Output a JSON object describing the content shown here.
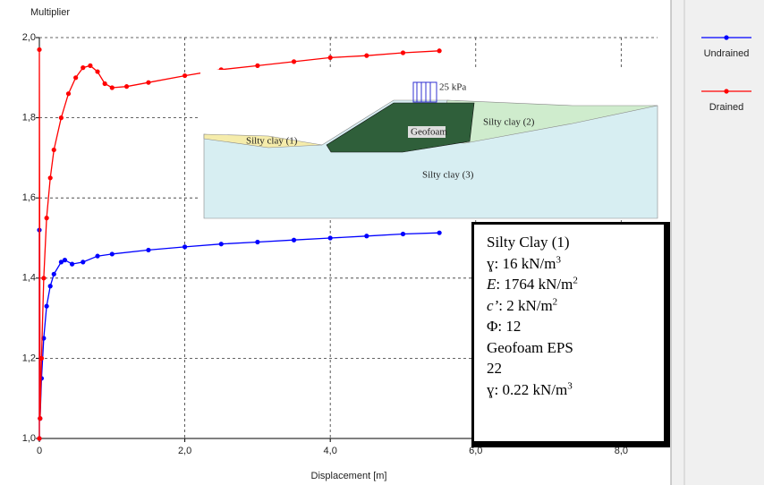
{
  "chart_data": {
    "type": "line",
    "y_label": "Multiplier",
    "x_label": "Displacement [m]",
    "xlim": [
      0,
      8.5
    ],
    "ylim": [
      1.0,
      2.0
    ],
    "xticks": [
      0,
      {
        "value": 2,
        "label": "2,0"
      },
      {
        "value": 4,
        "label": "4,0"
      },
      {
        "value": 6,
        "label": "6,0"
      },
      {
        "value": 8,
        "label": "8,0"
      }
    ],
    "yticks": [
      {
        "value": 1.0,
        "label": "1,0"
      },
      {
        "value": 1.2,
        "label": "1,2"
      },
      {
        "value": 1.4,
        "label": "1,4"
      },
      {
        "value": 1.6,
        "label": "1,6"
      },
      {
        "value": 1.8,
        "label": "1,8"
      },
      {
        "value": 2.0,
        "label": "2,0"
      }
    ],
    "grid": true,
    "legend": "right",
    "series": [
      {
        "name": "Undrained",
        "color": "#0000ff",
        "x": [
          0,
          0,
          0.01,
          0.03,
          0.06,
          0.1,
          0.15,
          0.2,
          0.3,
          0.35,
          0.45,
          0.6,
          0.8,
          1.0,
          1.5,
          2.0,
          2.5,
          3.0,
          3.5,
          4.0,
          4.5,
          5.0,
          5.5
        ],
        "values": [
          1.0,
          1.52,
          1.05,
          1.15,
          1.25,
          1.33,
          1.38,
          1.41,
          1.44,
          1.445,
          1.435,
          1.44,
          1.455,
          1.46,
          1.47,
          1.478,
          1.485,
          1.49,
          1.495,
          1.5,
          1.505,
          1.51,
          1.513
        ]
      },
      {
        "name": "Drained",
        "color": "#ff0000",
        "x": [
          0,
          0,
          0.01,
          0.03,
          0.06,
          0.1,
          0.15,
          0.2,
          0.3,
          0.4,
          0.5,
          0.6,
          0.7,
          0.8,
          0.9,
          1.0,
          1.2,
          1.5,
          2.0,
          2.5,
          3.0,
          3.5,
          4.0,
          4.5,
          5.0,
          5.5
        ],
        "values": [
          1.0,
          1.97,
          1.05,
          1.2,
          1.4,
          1.55,
          1.65,
          1.72,
          1.8,
          1.86,
          1.9,
          1.925,
          1.93,
          1.915,
          1.885,
          1.875,
          1.878,
          1.888,
          1.905,
          1.92,
          1.93,
          1.94,
          1.95,
          1.955,
          1.962,
          1.967
        ]
      }
    ]
  },
  "inset": {
    "load": "25 kPa",
    "layers": [
      "Silty clay (1)",
      "Geofoam",
      "Silty clay (2)",
      "Silty clay (3)"
    ]
  },
  "textbox": [
    {
      "text": "Silty Clay (1)"
    },
    {
      "text": "ɣ: 16 kN/m",
      "sup": "3"
    },
    {
      "label": "E",
      "text": ": 1764 kN/m",
      "sup": "2"
    },
    {
      "label": "c’",
      "text": ": 2 kN/m",
      "sup": "2"
    },
    {
      "text": "Φ: 12"
    },
    {
      "text": "Geofoam EPS"
    },
    {
      "text": "22"
    },
    {
      "text": "ɣ: 0.22 kN/m",
      "sup": "3"
    }
  ]
}
